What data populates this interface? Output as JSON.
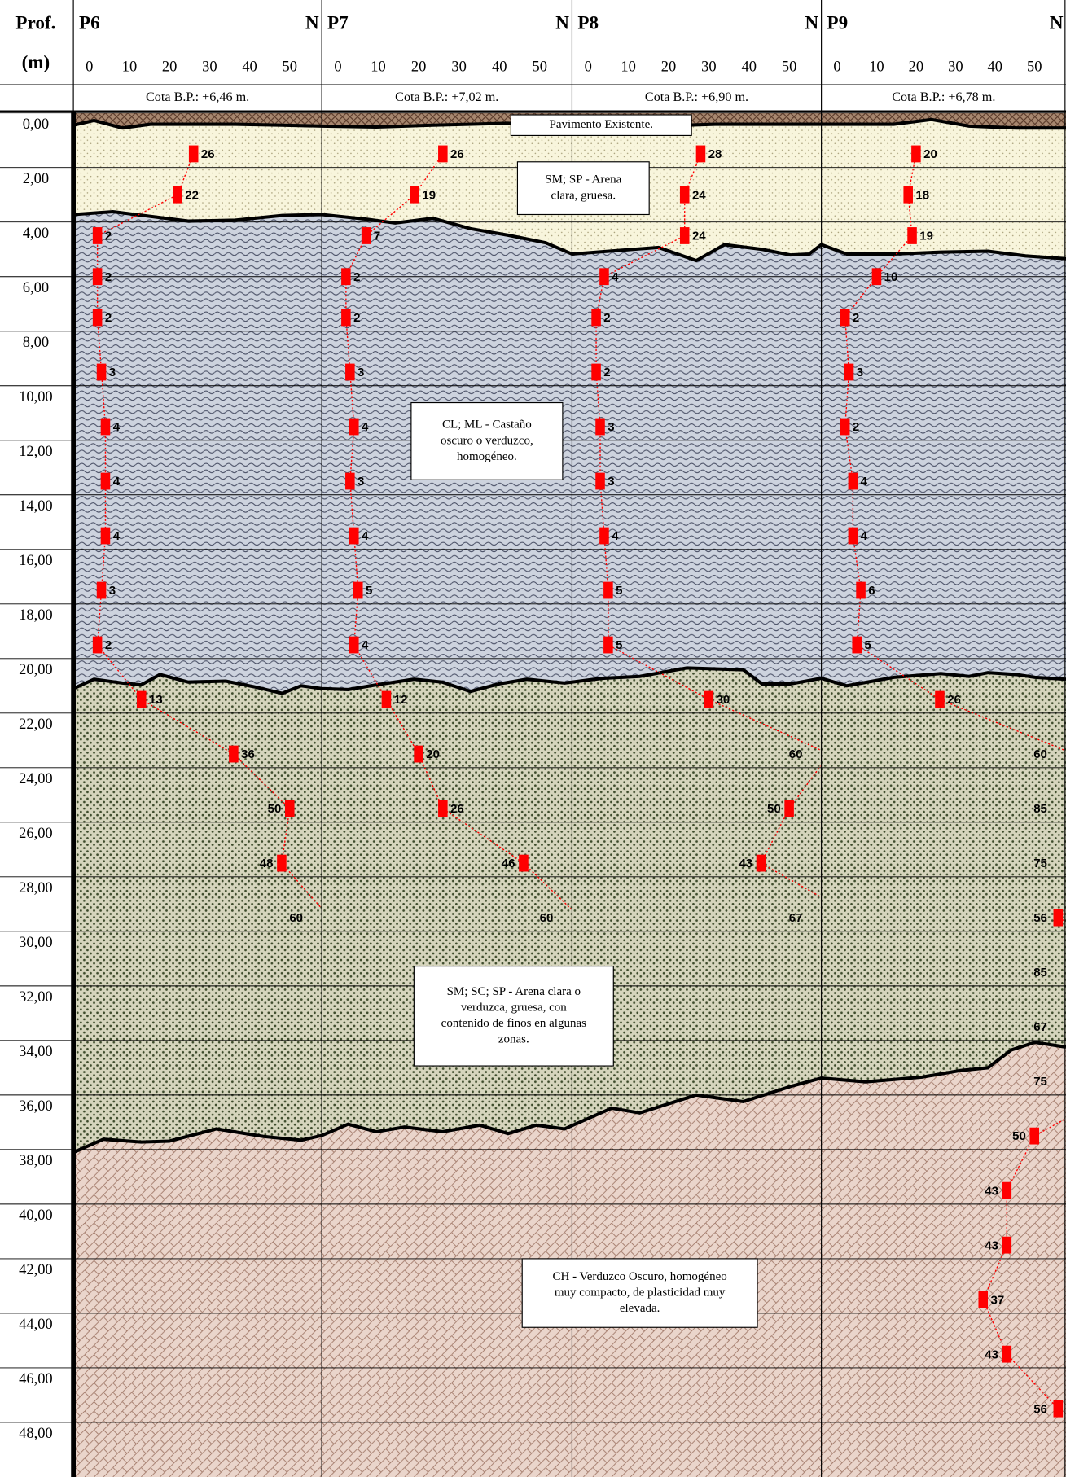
{
  "depth_axis": {
    "title": "Prof.",
    "unit": "(m)",
    "ylim": [
      0,
      50
    ],
    "yticks": [
      {
        "value": 0,
        "label": "0,00"
      },
      {
        "value": 2,
        "label": "2,00"
      },
      {
        "value": 4,
        "label": "4,00"
      },
      {
        "value": 6,
        "label": "6,00"
      },
      {
        "value": 8,
        "label": "8,00"
      },
      {
        "value": 10,
        "label": "10,00"
      },
      {
        "value": 12,
        "label": "12,00"
      },
      {
        "value": 14,
        "label": "14,00"
      },
      {
        "value": 16,
        "label": "16,00"
      },
      {
        "value": 18,
        "label": "18,00"
      },
      {
        "value": 20,
        "label": "20,00"
      },
      {
        "value": 22,
        "label": "22,00"
      },
      {
        "value": 24,
        "label": "24,00"
      },
      {
        "value": 26,
        "label": "26,00"
      },
      {
        "value": 28,
        "label": "28,00"
      },
      {
        "value": 30,
        "label": "30,00"
      },
      {
        "value": 32,
        "label": "32,00"
      },
      {
        "value": 34,
        "label": "34,00"
      },
      {
        "value": 36,
        "label": "36,00"
      },
      {
        "value": 38,
        "label": "38,00"
      },
      {
        "value": 40,
        "label": "40,00"
      },
      {
        "value": 42,
        "label": "42,00"
      },
      {
        "value": 44,
        "label": "44,00"
      },
      {
        "value": 46,
        "label": "46,00"
      },
      {
        "value": 48,
        "label": "48,00"
      }
    ]
  },
  "chart_data": [
    {
      "type": "line",
      "title": "P6",
      "x_title": "N",
      "subtitle": "Cota B.P.: +6,46 m.",
      "xlim": [
        -4,
        58
      ],
      "xticks": [
        0,
        10,
        20,
        30,
        40,
        50
      ],
      "color": "#ff0000",
      "depths": [
        1.5,
        3,
        4.5,
        6,
        7.5,
        9.5,
        11.5,
        13.5,
        15.5,
        17.5,
        19.5,
        21.5,
        23.5,
        25.5,
        27.5,
        29.5
      ],
      "values": [
        26,
        22,
        2,
        2,
        2,
        3,
        4,
        4,
        4,
        3,
        2,
        13,
        36,
        50,
        48,
        60
      ]
    },
    {
      "type": "line",
      "title": "P7",
      "x_title": "N",
      "subtitle": "Cota B.P.: +7,02 m.",
      "xlim": [
        -4,
        58
      ],
      "xticks": [
        0,
        10,
        20,
        30,
        40,
        50
      ],
      "color": "#ff0000",
      "depths": [
        1.5,
        3,
        4.5,
        6,
        7.5,
        9.5,
        11.5,
        13.5,
        15.5,
        17.5,
        19.5,
        21.5,
        23.5,
        25.5,
        27.5,
        29.5
      ],
      "values": [
        26,
        19,
        7,
        2,
        2,
        3,
        4,
        3,
        4,
        5,
        4,
        12,
        20,
        26,
        46,
        60
      ]
    },
    {
      "type": "line",
      "title": "P8",
      "x_title": "N",
      "subtitle": "Cota B.P.: +6,90 m.",
      "xlim": [
        -4,
        58
      ],
      "xticks": [
        0,
        10,
        20,
        30,
        40,
        50
      ],
      "color": "#ff0000",
      "depths": [
        1.5,
        3,
        4.5,
        6,
        7.5,
        9.5,
        11.5,
        13.5,
        15.5,
        17.5,
        19.5,
        21.5,
        23.5,
        25.5,
        27.5,
        29.5
      ],
      "values": [
        28,
        24,
        24,
        4,
        2,
        2,
        3,
        3,
        4,
        5,
        5,
        30,
        60,
        50,
        43,
        67
      ]
    },
    {
      "type": "line",
      "title": "P9",
      "x_title": "N",
      "subtitle": "Cota B.P.: +6,78 m.",
      "xlim": [
        -4,
        58
      ],
      "xticks": [
        0,
        10,
        20,
        30,
        40,
        50
      ],
      "color": "#ff0000",
      "depths": [
        1.5,
        3,
        4.5,
        6,
        7.5,
        9.5,
        11.5,
        13.5,
        15.5,
        17.5,
        19.5,
        21.5,
        23.5,
        25.5,
        27.5,
        29.5,
        31.5,
        33.5,
        35.5,
        37.5,
        39.5,
        41.5,
        43.5,
        45.5,
        47.5
      ],
      "values": [
        20,
        18,
        19,
        10,
        2,
        3,
        2,
        4,
        4,
        6,
        5,
        26,
        60,
        85,
        75,
        56,
        85,
        67,
        75,
        50,
        43,
        43,
        37,
        43,
        56
      ]
    }
  ],
  "layers": [
    {
      "lines": [
        "Pavimento Existente."
      ]
    },
    {
      "lines": [
        "SM; SP - Arena",
        "clara, gruesa."
      ]
    },
    {
      "lines": [
        "CL; ML - Castaño",
        "oscuro o verduzco,",
        "homogéneo."
      ]
    },
    {
      "lines": [
        "SM; SC; SP - Arena clara o",
        "verduzca, gruesa, con",
        "contenido de finos en algunas",
        "zonas."
      ]
    },
    {
      "lines": [
        "CH - Verduzco Oscuro, homogéneo",
        "muy compacto, de plasticidad muy",
        "elevada."
      ]
    }
  ]
}
